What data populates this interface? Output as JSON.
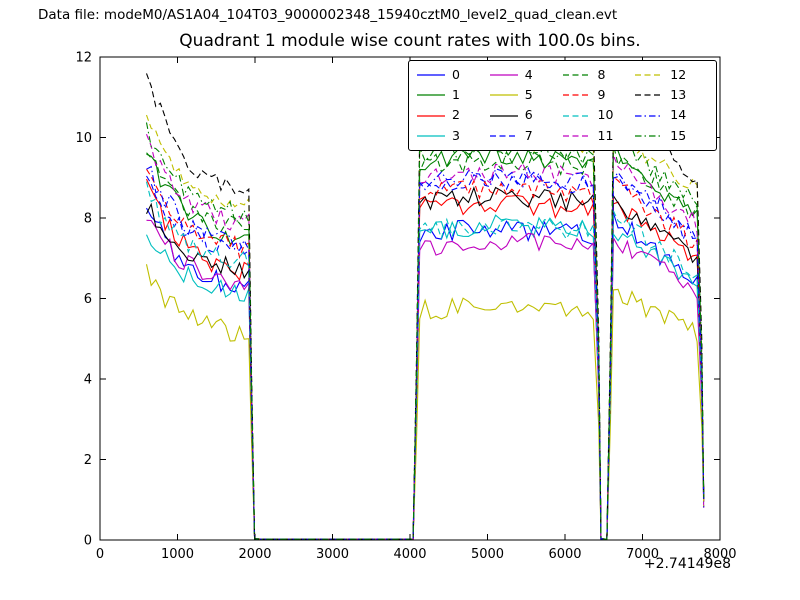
{
  "header": {
    "data_file": "Data file: modeM0/AS1A04_104T03_9000002348_15940cztM0_level2_quad_clean.evt"
  },
  "chart_data": {
    "type": "line",
    "title": "Quadrant 1 module wise count rates with 100.0s bins.",
    "xlabel": "",
    "ylabel": "",
    "xlim": [
      0,
      8000
    ],
    "ylim": [
      0,
      12
    ],
    "xticks": [
      0,
      1000,
      2000,
      3000,
      4000,
      5000,
      6000,
      7000,
      8000
    ],
    "yticks": [
      0,
      2,
      4,
      6,
      8,
      10,
      12
    ],
    "x_offset_label": "+2.74149e8",
    "bin_seconds": 100.0,
    "grid": false,
    "legend_position": "upper right",
    "on_intervals": [
      [
        600,
        1980
      ],
      [
        4100,
        6450
      ],
      [
        6600,
        7790
      ]
    ],
    "noise_sigma": 0.26,
    "final_drop_value": 1.0,
    "series": [
      {
        "name": "0",
        "color": "#0000ff",
        "linestyle": "solid",
        "seg1_start": 8.4,
        "seg1_end": 6.1,
        "seg2_level": 7.6,
        "seg3_start": 8.0,
        "seg3_end": 6.3
      },
      {
        "name": "1",
        "color": "#008000",
        "linestyle": "solid",
        "seg1_start": 9.7,
        "seg1_end": 7.3,
        "seg2_level": 9.4,
        "seg3_start": 9.6,
        "seg3_end": 7.9
      },
      {
        "name": "2",
        "color": "#ff0000",
        "linestyle": "solid",
        "seg1_start": 8.9,
        "seg1_end": 6.5,
        "seg2_level": 8.2,
        "seg3_start": 8.4,
        "seg3_end": 6.9
      },
      {
        "name": "3",
        "color": "#00bfbf",
        "linestyle": "solid",
        "seg1_start": 7.7,
        "seg1_end": 6.0,
        "seg2_level": 7.7,
        "seg3_start": 7.7,
        "seg3_end": 6.4
      },
      {
        "name": "4",
        "color": "#bf00bf",
        "linestyle": "solid",
        "seg1_start": 8.1,
        "seg1_end": 6.2,
        "seg2_level": 7.3,
        "seg3_start": 7.5,
        "seg3_end": 6.2
      },
      {
        "name": "5",
        "color": "#bfbf00",
        "linestyle": "solid",
        "seg1_start": 6.7,
        "seg1_end": 5.0,
        "seg2_level": 5.7,
        "seg3_start": 6.2,
        "seg3_end": 5.1
      },
      {
        "name": "6",
        "color": "#000000",
        "linestyle": "solid",
        "seg1_start": 8.3,
        "seg1_end": 6.6,
        "seg2_level": 8.4,
        "seg3_start": 8.3,
        "seg3_end": 7.0
      },
      {
        "name": "7",
        "color": "#0000ff",
        "linestyle": "dashed",
        "seg1_start": 9.1,
        "seg1_end": 7.0,
        "seg2_level": 8.8,
        "seg3_start": 9.0,
        "seg3_end": 7.4
      },
      {
        "name": "8",
        "color": "#008000",
        "linestyle": "dashed",
        "seg1_start": 9.8,
        "seg1_end": 7.6,
        "seg2_level": 9.3,
        "seg3_start": 9.6,
        "seg3_end": 8.1
      },
      {
        "name": "9",
        "color": "#ff0000",
        "linestyle": "dashed",
        "seg1_start": 9.3,
        "seg1_end": 7.1,
        "seg2_level": 8.6,
        "seg3_start": 8.9,
        "seg3_end": 7.3
      },
      {
        "name": "10",
        "color": "#00bfbf",
        "linestyle": "dashed",
        "seg1_start": 8.7,
        "seg1_end": 6.8,
        "seg2_level": 7.7,
        "seg3_start": 8.0,
        "seg3_end": 6.6
      },
      {
        "name": "11",
        "color": "#bf00bf",
        "linestyle": "dashed",
        "seg1_start": 10.0,
        "seg1_end": 7.7,
        "seg2_level": 9.0,
        "seg3_start": 9.4,
        "seg3_end": 7.8
      },
      {
        "name": "12",
        "color": "#bfbf00",
        "linestyle": "dashed",
        "seg1_start": 10.6,
        "seg1_end": 8.1,
        "seg2_level": 9.8,
        "seg3_start": 10.2,
        "seg3_end": 8.6
      },
      {
        "name": "13",
        "color": "#000000",
        "linestyle": "dashed",
        "seg1_start": 11.6,
        "seg1_end": 8.4,
        "seg2_level": 10.3,
        "seg3_start": 10.6,
        "seg3_end": 9.0
      },
      {
        "name": "14",
        "color": "#0000ff",
        "linestyle": "dashdot",
        "seg1_start": 9.4,
        "seg1_end": 7.1,
        "seg2_level": 8.9,
        "seg3_start": 9.2,
        "seg3_end": 7.5
      },
      {
        "name": "15",
        "color": "#008000",
        "linestyle": "dashdot",
        "seg1_start": 10.3,
        "seg1_end": 7.9,
        "seg2_level": 9.6,
        "seg3_start": 9.9,
        "seg3_end": 8.3
      }
    ]
  }
}
